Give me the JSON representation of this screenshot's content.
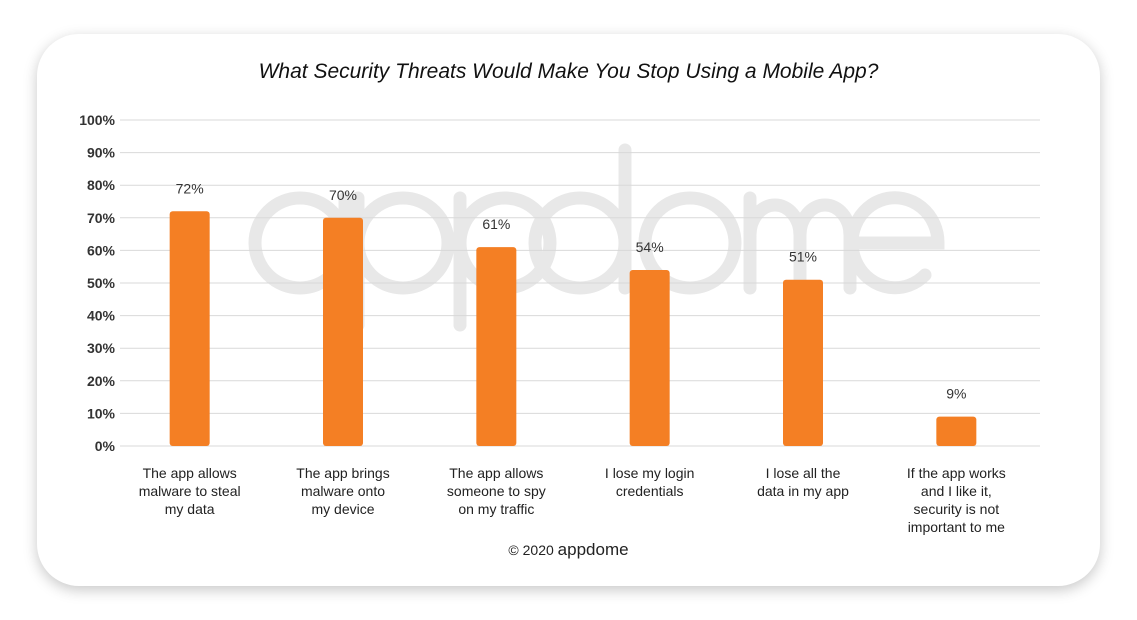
{
  "chart_data": {
    "type": "bar",
    "title": "What Security Threats Would Make You Stop Using a Mobile App?",
    "categories": [
      [
        "The app allows",
        "malware to steal",
        "my data"
      ],
      [
        "The app brings",
        "malware onto",
        "my device"
      ],
      [
        "The app allows",
        "someone to spy",
        "on my traffic"
      ],
      [
        "I lose my login",
        "credentials"
      ],
      [
        "I lose all the",
        "data in my app"
      ],
      [
        "If the app works",
        "and I like it,",
        "security is not",
        "important to me"
      ]
    ],
    "values": [
      72,
      70,
      61,
      54,
      51,
      9
    ],
    "data_labels": [
      "72%",
      "70%",
      "61%",
      "54%",
      "51%",
      "9%"
    ],
    "ylim": [
      0,
      100
    ],
    "yticks": [
      "0%",
      "10%",
      "20%",
      "30%",
      "40%",
      "50%",
      "60%",
      "70%",
      "80%",
      "90%",
      "100%"
    ],
    "grid": true,
    "bar_color": "#F47F24"
  },
  "watermark": "appdome",
  "footer": {
    "copyright": "© 2020",
    "brand": "appdome"
  }
}
